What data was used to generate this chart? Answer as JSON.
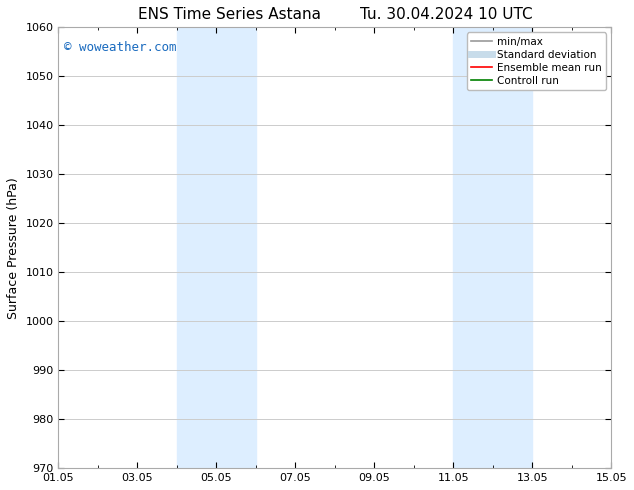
{
  "title_left": "ENS Time Series Astana",
  "title_right": "Tu. 30.04.2024 10 UTC",
  "ylabel": "Surface Pressure (hPa)",
  "ylim": [
    970,
    1060
  ],
  "yticks": [
    970,
    980,
    990,
    1000,
    1010,
    1020,
    1030,
    1040,
    1050,
    1060
  ],
  "xlim": [
    0,
    14
  ],
  "xtick_labels": [
    "01.05",
    "03.05",
    "05.05",
    "07.05",
    "09.05",
    "11.05",
    "13.05",
    "15.05"
  ],
  "xtick_positions": [
    0,
    2,
    4,
    6,
    8,
    10,
    12,
    14
  ],
  "shaded_regions": [
    {
      "x_start": 3.0,
      "x_end": 4.0,
      "color": "#ddeeff"
    },
    {
      "x_start": 4.0,
      "x_end": 5.0,
      "color": "#ddeeff"
    },
    {
      "x_start": 10.0,
      "x_end": 11.0,
      "color": "#ddeeff"
    },
    {
      "x_start": 11.0,
      "x_end": 12.0,
      "color": "#ddeeff"
    }
  ],
  "watermark_text": "© woweather.com",
  "watermark_color": "#1a6bbf",
  "watermark_fontsize": 9,
  "legend_entries": [
    {
      "label": "min/max",
      "color": "#999999",
      "lw": 1.2,
      "style": "solid"
    },
    {
      "label": "Standard deviation",
      "color": "#c8dcea",
      "lw": 5,
      "style": "solid"
    },
    {
      "label": "Ensemble mean run",
      "color": "red",
      "lw": 1.2,
      "style": "solid"
    },
    {
      "label": "Controll run",
      "color": "green",
      "lw": 1.2,
      "style": "solid"
    }
  ],
  "bg_color": "#ffffff",
  "plot_bg_color": "#ffffff",
  "grid_color": "#cccccc",
  "title_fontsize": 11,
  "ylabel_fontsize": 9,
  "tick_fontsize": 8,
  "legend_fontsize": 7.5,
  "spine_color": "#aaaaaa"
}
